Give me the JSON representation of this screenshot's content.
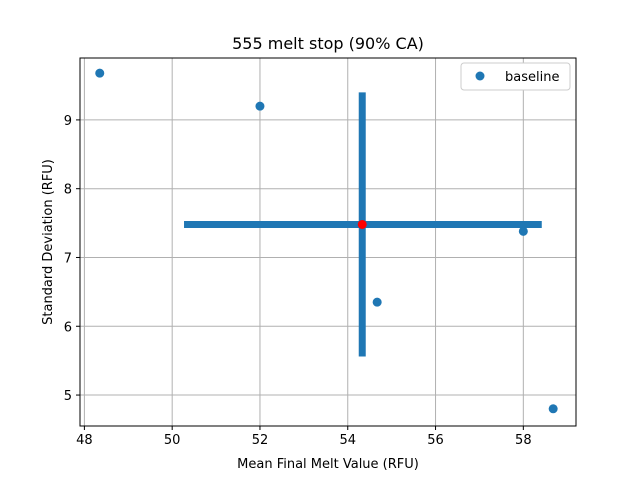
{
  "chart_data": {
    "type": "scatter",
    "title": "555 melt stop (90% CA)",
    "xlabel": "Mean Final Melt Value (RFU)",
    "ylabel": "Standard Deviation (RFU)",
    "xlim": [
      47.9,
      59.2
    ],
    "ylim": [
      4.55,
      9.9
    ],
    "x_ticks": [
      48,
      50,
      52,
      54,
      56,
      58
    ],
    "y_ticks": [
      5,
      6,
      7,
      8,
      9
    ],
    "grid": true,
    "legend": {
      "position": "top-right",
      "entries": [
        "baseline"
      ]
    },
    "series": [
      {
        "name": "baseline",
        "color": "#1f77b4",
        "points": [
          {
            "x": 48.35,
            "y": 9.68
          },
          {
            "x": 52.0,
            "y": 9.2
          },
          {
            "x": 54.67,
            "y": 6.35
          },
          {
            "x": 58.0,
            "y": 7.38
          },
          {
            "x": 58.68,
            "y": 4.8
          }
        ]
      }
    ],
    "mean_point": {
      "x": 54.33,
      "y": 7.48,
      "color": "#ff0000"
    },
    "error_bars": {
      "color": "#1f77b4",
      "x_range": [
        50.27,
        58.42
      ],
      "y_range": [
        5.56,
        9.4
      ]
    }
  }
}
